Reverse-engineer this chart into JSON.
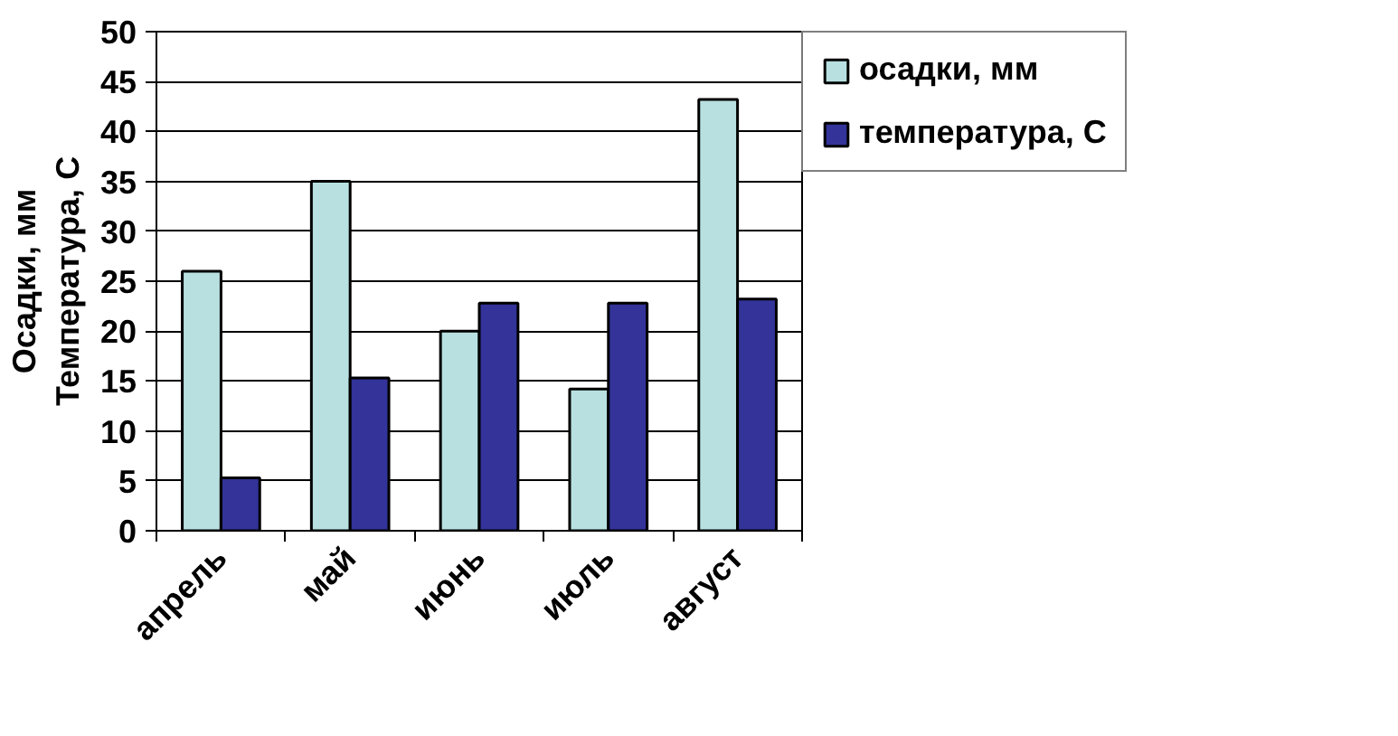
{
  "chart_data": {
    "type": "bar",
    "ylabel": "Осадки, мм\nТемпература, С",
    "categories": [
      "апрель",
      "май",
      "июнь",
      "июль",
      "август"
    ],
    "series": [
      {
        "name": "осадки, мм",
        "color": "#b8e0e0",
        "values": [
          26,
          35,
          20,
          14.2,
          43.2
        ]
      },
      {
        "name": "температура, С",
        "color": "#333399",
        "values": [
          5.3,
          15.3,
          22.8,
          22.8,
          23.2
        ]
      }
    ],
    "ylim": [
      0,
      50
    ],
    "yticks": [
      0,
      5,
      10,
      15,
      20,
      25,
      30,
      35,
      40,
      45,
      50
    ],
    "grid": "y",
    "legend": "right"
  }
}
